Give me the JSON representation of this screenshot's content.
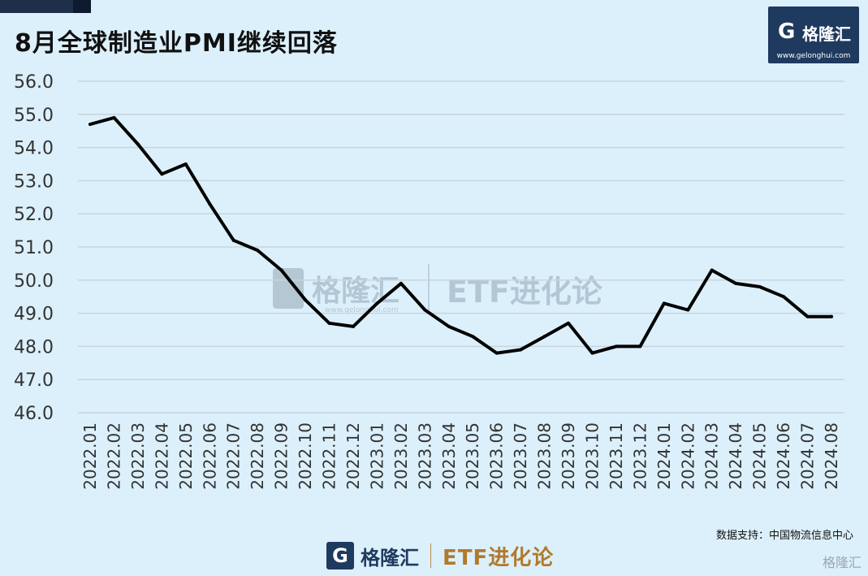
{
  "title": "8月全球制造业PMI继续回落",
  "logo": {
    "mark": "G",
    "brand": "格隆汇",
    "url": "www.gelonghui.com"
  },
  "source": "数据支持：中国物流信息中心",
  "footer": {
    "mark": "G",
    "brand": "格隆汇",
    "etf": "ETF进化论"
  },
  "watermark": {
    "brand": "格隆汇",
    "etf": "ETF进化论",
    "url": "www.gelonghui.com"
  },
  "corner_watermark": "格隆汇",
  "chart_data": {
    "type": "line",
    "title": "8月全球制造业PMI继续回落",
    "categories": [
      "2022.01",
      "2022.02",
      "2022.03",
      "2022.04",
      "2022.05",
      "2022.06",
      "2022.07",
      "2022.08",
      "2022.09",
      "2022.10",
      "2022.11",
      "2022.12",
      "2023.01",
      "2023.02",
      "2023.03",
      "2023.04",
      "2023.05",
      "2023.06",
      "2023.07",
      "2023.08",
      "2023.09",
      "2023.10",
      "2023.11",
      "2023.12",
      "2024.01",
      "2024.02",
      "2024.03",
      "2024.04",
      "2024.05",
      "2024.06",
      "2024.07",
      "2024.08"
    ],
    "values": [
      54.7,
      54.9,
      54.1,
      53.2,
      53.5,
      52.3,
      51.2,
      50.9,
      50.3,
      49.4,
      48.7,
      48.6,
      49.3,
      49.9,
      49.1,
      48.6,
      48.3,
      47.8,
      47.9,
      48.3,
      48.7,
      47.8,
      48.0,
      48.0,
      49.3,
      49.1,
      50.3,
      49.9,
      49.8,
      49.5,
      48.9,
      48.9
    ],
    "ylim": [
      46.0,
      56.0
    ],
    "yticks": [
      "46.0",
      "47.0",
      "48.0",
      "49.0",
      "50.0",
      "51.0",
      "52.0",
      "53.0",
      "54.0",
      "55.0",
      "56.0"
    ],
    "grid": true,
    "line_color": "#000000",
    "grid_color": "#c8d4de"
  }
}
